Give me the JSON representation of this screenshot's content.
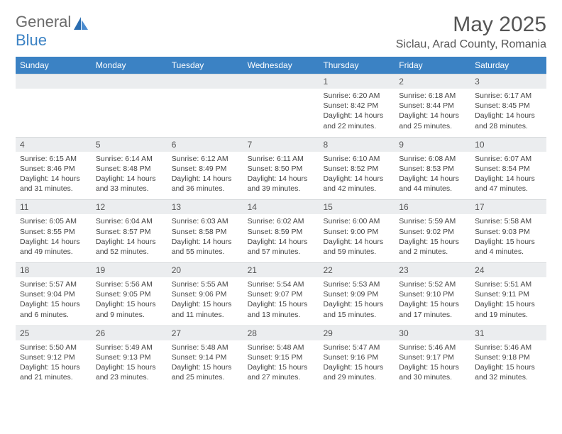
{
  "logo": {
    "general": "General",
    "blue": "Blue"
  },
  "title": "May 2025",
  "location": "Siclau, Arad County, Romania",
  "header_color": "#3b82c4",
  "num_row_bg": "#ebedef",
  "days": [
    "Sunday",
    "Monday",
    "Tuesday",
    "Wednesday",
    "Thursday",
    "Friday",
    "Saturday"
  ],
  "weeks": [
    {
      "nums": [
        "",
        "",
        "",
        "",
        "1",
        "2",
        "3"
      ],
      "cells": [
        null,
        null,
        null,
        null,
        {
          "sunrise": "Sunrise: 6:20 AM",
          "sunset": "Sunset: 8:42 PM",
          "d1": "Daylight: 14 hours",
          "d2": "and 22 minutes."
        },
        {
          "sunrise": "Sunrise: 6:18 AM",
          "sunset": "Sunset: 8:44 PM",
          "d1": "Daylight: 14 hours",
          "d2": "and 25 minutes."
        },
        {
          "sunrise": "Sunrise: 6:17 AM",
          "sunset": "Sunset: 8:45 PM",
          "d1": "Daylight: 14 hours",
          "d2": "and 28 minutes."
        }
      ]
    },
    {
      "nums": [
        "4",
        "5",
        "6",
        "7",
        "8",
        "9",
        "10"
      ],
      "cells": [
        {
          "sunrise": "Sunrise: 6:15 AM",
          "sunset": "Sunset: 8:46 PM",
          "d1": "Daylight: 14 hours",
          "d2": "and 31 minutes."
        },
        {
          "sunrise": "Sunrise: 6:14 AM",
          "sunset": "Sunset: 8:48 PM",
          "d1": "Daylight: 14 hours",
          "d2": "and 33 minutes."
        },
        {
          "sunrise": "Sunrise: 6:12 AM",
          "sunset": "Sunset: 8:49 PM",
          "d1": "Daylight: 14 hours",
          "d2": "and 36 minutes."
        },
        {
          "sunrise": "Sunrise: 6:11 AM",
          "sunset": "Sunset: 8:50 PM",
          "d1": "Daylight: 14 hours",
          "d2": "and 39 minutes."
        },
        {
          "sunrise": "Sunrise: 6:10 AM",
          "sunset": "Sunset: 8:52 PM",
          "d1": "Daylight: 14 hours",
          "d2": "and 42 minutes."
        },
        {
          "sunrise": "Sunrise: 6:08 AM",
          "sunset": "Sunset: 8:53 PM",
          "d1": "Daylight: 14 hours",
          "d2": "and 44 minutes."
        },
        {
          "sunrise": "Sunrise: 6:07 AM",
          "sunset": "Sunset: 8:54 PM",
          "d1": "Daylight: 14 hours",
          "d2": "and 47 minutes."
        }
      ]
    },
    {
      "nums": [
        "11",
        "12",
        "13",
        "14",
        "15",
        "16",
        "17"
      ],
      "cells": [
        {
          "sunrise": "Sunrise: 6:05 AM",
          "sunset": "Sunset: 8:55 PM",
          "d1": "Daylight: 14 hours",
          "d2": "and 49 minutes."
        },
        {
          "sunrise": "Sunrise: 6:04 AM",
          "sunset": "Sunset: 8:57 PM",
          "d1": "Daylight: 14 hours",
          "d2": "and 52 minutes."
        },
        {
          "sunrise": "Sunrise: 6:03 AM",
          "sunset": "Sunset: 8:58 PM",
          "d1": "Daylight: 14 hours",
          "d2": "and 55 minutes."
        },
        {
          "sunrise": "Sunrise: 6:02 AM",
          "sunset": "Sunset: 8:59 PM",
          "d1": "Daylight: 14 hours",
          "d2": "and 57 minutes."
        },
        {
          "sunrise": "Sunrise: 6:00 AM",
          "sunset": "Sunset: 9:00 PM",
          "d1": "Daylight: 14 hours",
          "d2": "and 59 minutes."
        },
        {
          "sunrise": "Sunrise: 5:59 AM",
          "sunset": "Sunset: 9:02 PM",
          "d1": "Daylight: 15 hours",
          "d2": "and 2 minutes."
        },
        {
          "sunrise": "Sunrise: 5:58 AM",
          "sunset": "Sunset: 9:03 PM",
          "d1": "Daylight: 15 hours",
          "d2": "and 4 minutes."
        }
      ]
    },
    {
      "nums": [
        "18",
        "19",
        "20",
        "21",
        "22",
        "23",
        "24"
      ],
      "cells": [
        {
          "sunrise": "Sunrise: 5:57 AM",
          "sunset": "Sunset: 9:04 PM",
          "d1": "Daylight: 15 hours",
          "d2": "and 6 minutes."
        },
        {
          "sunrise": "Sunrise: 5:56 AM",
          "sunset": "Sunset: 9:05 PM",
          "d1": "Daylight: 15 hours",
          "d2": "and 9 minutes."
        },
        {
          "sunrise": "Sunrise: 5:55 AM",
          "sunset": "Sunset: 9:06 PM",
          "d1": "Daylight: 15 hours",
          "d2": "and 11 minutes."
        },
        {
          "sunrise": "Sunrise: 5:54 AM",
          "sunset": "Sunset: 9:07 PM",
          "d1": "Daylight: 15 hours",
          "d2": "and 13 minutes."
        },
        {
          "sunrise": "Sunrise: 5:53 AM",
          "sunset": "Sunset: 9:09 PM",
          "d1": "Daylight: 15 hours",
          "d2": "and 15 minutes."
        },
        {
          "sunrise": "Sunrise: 5:52 AM",
          "sunset": "Sunset: 9:10 PM",
          "d1": "Daylight: 15 hours",
          "d2": "and 17 minutes."
        },
        {
          "sunrise": "Sunrise: 5:51 AM",
          "sunset": "Sunset: 9:11 PM",
          "d1": "Daylight: 15 hours",
          "d2": "and 19 minutes."
        }
      ]
    },
    {
      "nums": [
        "25",
        "26",
        "27",
        "28",
        "29",
        "30",
        "31"
      ],
      "cells": [
        {
          "sunrise": "Sunrise: 5:50 AM",
          "sunset": "Sunset: 9:12 PM",
          "d1": "Daylight: 15 hours",
          "d2": "and 21 minutes."
        },
        {
          "sunrise": "Sunrise: 5:49 AM",
          "sunset": "Sunset: 9:13 PM",
          "d1": "Daylight: 15 hours",
          "d2": "and 23 minutes."
        },
        {
          "sunrise": "Sunrise: 5:48 AM",
          "sunset": "Sunset: 9:14 PM",
          "d1": "Daylight: 15 hours",
          "d2": "and 25 minutes."
        },
        {
          "sunrise": "Sunrise: 5:48 AM",
          "sunset": "Sunset: 9:15 PM",
          "d1": "Daylight: 15 hours",
          "d2": "and 27 minutes."
        },
        {
          "sunrise": "Sunrise: 5:47 AM",
          "sunset": "Sunset: 9:16 PM",
          "d1": "Daylight: 15 hours",
          "d2": "and 29 minutes."
        },
        {
          "sunrise": "Sunrise: 5:46 AM",
          "sunset": "Sunset: 9:17 PM",
          "d1": "Daylight: 15 hours",
          "d2": "and 30 minutes."
        },
        {
          "sunrise": "Sunrise: 5:46 AM",
          "sunset": "Sunset: 9:18 PM",
          "d1": "Daylight: 15 hours",
          "d2": "and 32 minutes."
        }
      ]
    }
  ]
}
